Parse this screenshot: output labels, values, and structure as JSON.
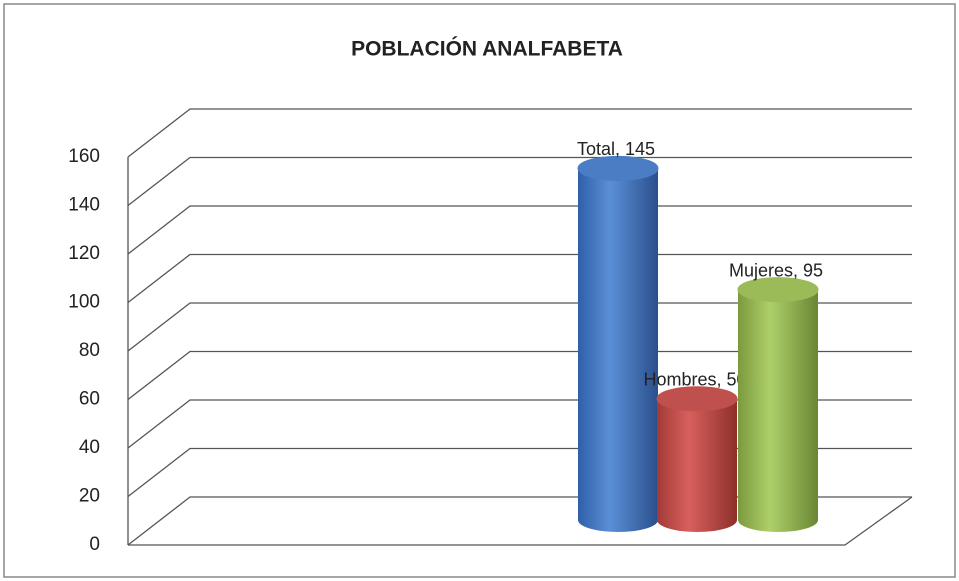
{
  "chart_data": {
    "type": "bar",
    "title": "POBLACIÓN ANALFABETA",
    "series": [
      {
        "color": "#4a7dc4",
        "values": [
          145
        ],
        "value_labels": [
          "Total, 145"
        ]
      },
      {
        "color": "#c0504d",
        "values": [
          50
        ],
        "value_labels": [
          "Hombres, 50"
        ]
      },
      {
        "color": "#9bbb59",
        "values": [
          95
        ],
        "value_labels": [
          "Mujeres, 95"
        ]
      }
    ],
    "ylim": [
      0,
      160
    ],
    "yticks": [
      0,
      20,
      40,
      60,
      80,
      100,
      120,
      140,
      160
    ],
    "grid": true
  }
}
